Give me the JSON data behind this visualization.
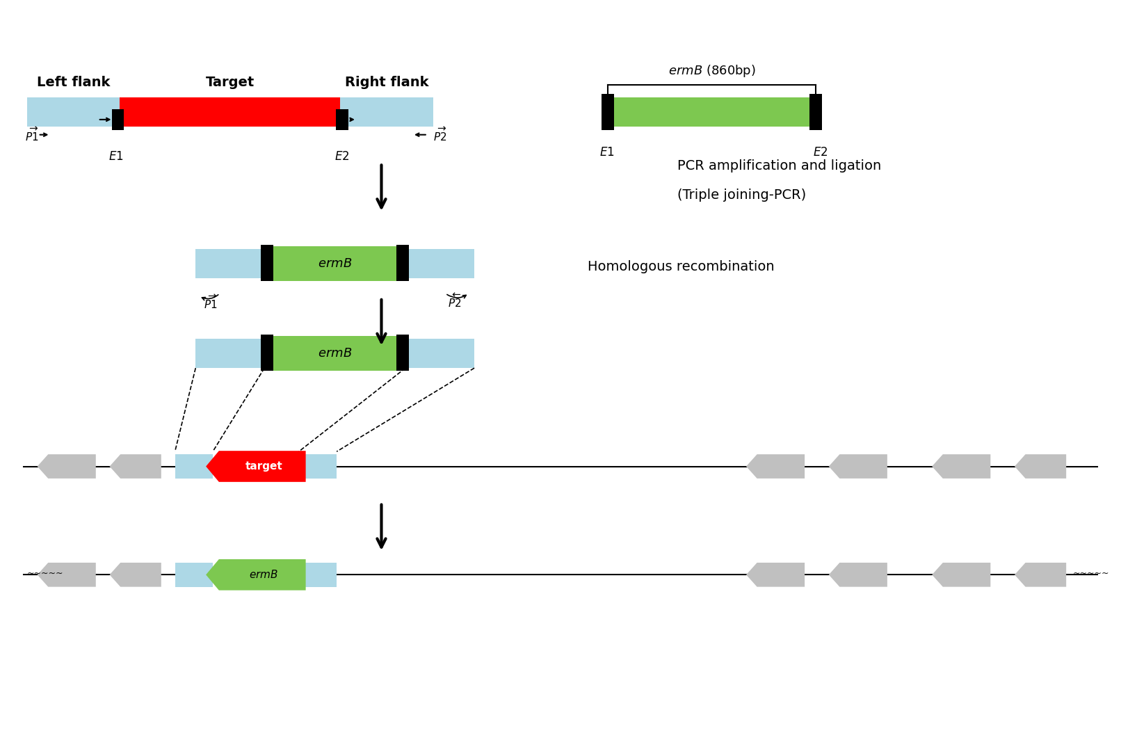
{
  "bg_color": "#ffffff",
  "light_blue": "#add8e6",
  "red": "#ff0000",
  "green": "#7dc850",
  "black": "#000000",
  "gray": "#b0b0b0",
  "arrow_gray": "#c0c0c0",
  "title_row1": "PCR amplification and ligation",
  "title_row2": "(Triple joining-PCR)",
  "title_row3": "Homologous recombination",
  "label_left_flank": "Left flank",
  "label_target": "Target",
  "label_right_flank": "Right flank",
  "label_ermB_top": "ermB (860bp)",
  "label_ermB": "ermB",
  "label_target_small": "target"
}
